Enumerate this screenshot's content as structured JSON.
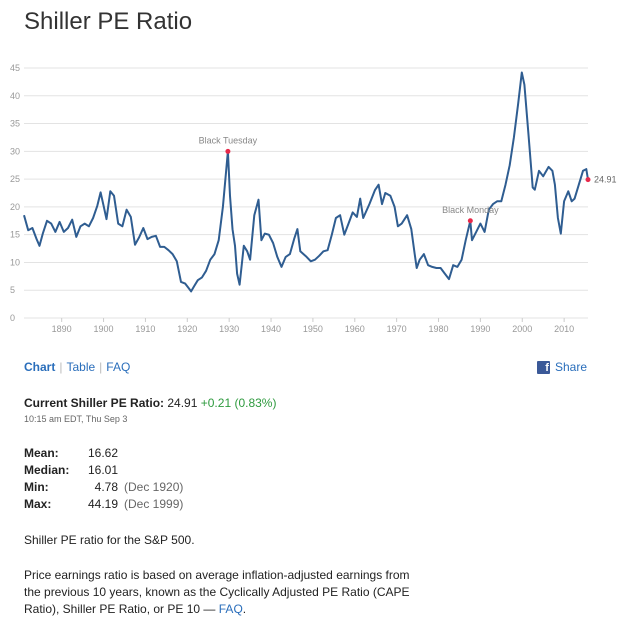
{
  "page": {
    "title": "Shiller PE Ratio"
  },
  "nav": {
    "chart": "Chart",
    "table": "Table",
    "faq": "FAQ",
    "share": "Share"
  },
  "current": {
    "label": "Current Shiller PE Ratio:",
    "value": "24.91",
    "change": "+0.21 (0.83%)",
    "timestamp": "10:15 am EDT, Thu Sep 3"
  },
  "stats": [
    {
      "key": "Mean:",
      "value": "16.62",
      "date": ""
    },
    {
      "key": "Median:",
      "value": "16.01",
      "date": ""
    },
    {
      "key": "Min:",
      "value": "4.78",
      "date": "(Dec 1920)"
    },
    {
      "key": "Max:",
      "value": "44.19",
      "date": "(Dec 1999)"
    }
  ],
  "description": {
    "line1": "Shiller PE ratio for the S&P 500.",
    "line2": "Price earnings ratio is based on average inflation-adjusted earnings from the previous 10 years, known as the Cyclically Adjusted PE Ratio (CAPE Ratio), Shiller PE Ratio, or PE 10 —",
    "faq_link": "FAQ",
    "line2_end": "."
  },
  "colors": {
    "line": "#2f5d91",
    "marker": "#e8294a",
    "grid": "#e3e3e3",
    "link": "#2a6ebb",
    "positive": "#2e9a3e"
  },
  "chart_data": {
    "type": "line",
    "title": "",
    "xlabel": "",
    "ylabel": "",
    "xlim": [
      1881,
      2015.7
    ],
    "ylim": [
      0,
      45
    ],
    "yticks": [
      0,
      5,
      10,
      15,
      20,
      25,
      30,
      35,
      40,
      45
    ],
    "xticks": [
      1890,
      1900,
      1910,
      1920,
      1930,
      1940,
      1950,
      1960,
      1970,
      1980,
      1990,
      2000,
      2010
    ],
    "grid": "horizontal",
    "series": [
      {
        "values": [
          [
            1881,
            18.5
          ],
          [
            1882,
            15.8
          ],
          [
            1883,
            16.2
          ],
          [
            1884,
            14.2
          ],
          [
            1884.7,
            13
          ],
          [
            1885.5,
            15.2
          ],
          [
            1886.5,
            17.5
          ],
          [
            1887.5,
            17
          ],
          [
            1888.5,
            15.5
          ],
          [
            1889.5,
            17.3
          ],
          [
            1890.5,
            15.5
          ],
          [
            1891.5,
            16.2
          ],
          [
            1892.5,
            17.7
          ],
          [
            1893.5,
            14.6
          ],
          [
            1894.5,
            16.5
          ],
          [
            1895.5,
            17
          ],
          [
            1896.5,
            16.5
          ],
          [
            1897.5,
            18
          ],
          [
            1898.5,
            20.2
          ],
          [
            1899.3,
            22.6
          ],
          [
            1900,
            20.2
          ],
          [
            1900.7,
            17.8
          ],
          [
            1901.6,
            22.8
          ],
          [
            1902.5,
            22
          ],
          [
            1903.5,
            17
          ],
          [
            1904.5,
            16.5
          ],
          [
            1905.5,
            19.5
          ],
          [
            1906.5,
            18.2
          ],
          [
            1907.5,
            13.2
          ],
          [
            1908.5,
            14.5
          ],
          [
            1909.5,
            16.2
          ],
          [
            1910.5,
            14.2
          ],
          [
            1911.5,
            14.6
          ],
          [
            1912.5,
            14.8
          ],
          [
            1913.5,
            12.8
          ],
          [
            1914.5,
            12.8
          ],
          [
            1915.5,
            12.2
          ],
          [
            1916.5,
            11.5
          ],
          [
            1917.5,
            10.2
          ],
          [
            1918.5,
            6.5
          ],
          [
            1919.5,
            6.2
          ],
          [
            1920.2,
            5.5
          ],
          [
            1920.9,
            4.78
          ],
          [
            1921.7,
            5.8
          ],
          [
            1922.5,
            6.8
          ],
          [
            1923.5,
            7.3
          ],
          [
            1924.5,
            8.5
          ],
          [
            1925.5,
            10.5
          ],
          [
            1926.5,
            11.5
          ],
          [
            1927.5,
            14
          ],
          [
            1928.5,
            20
          ],
          [
            1929.7,
            30
          ],
          [
            1930.2,
            22
          ],
          [
            1930.8,
            16
          ],
          [
            1931.4,
            13
          ],
          [
            1931.9,
            8
          ],
          [
            1932.5,
            6
          ],
          [
            1933.5,
            13
          ],
          [
            1934.3,
            12
          ],
          [
            1935,
            10.5
          ],
          [
            1936,
            18.5
          ],
          [
            1937,
            21.3
          ],
          [
            1937.7,
            14
          ],
          [
            1938.5,
            15.2
          ],
          [
            1939.5,
            15
          ],
          [
            1940.5,
            13.5
          ],
          [
            1941.5,
            11
          ],
          [
            1942.5,
            9.2
          ],
          [
            1943.5,
            11
          ],
          [
            1944.5,
            11.5
          ],
          [
            1945.5,
            14.2
          ],
          [
            1946.3,
            16
          ],
          [
            1947,
            12
          ],
          [
            1948.5,
            11
          ],
          [
            1949.5,
            10.2
          ],
          [
            1950.5,
            10.5
          ],
          [
            1951.5,
            11.2
          ],
          [
            1952.5,
            12
          ],
          [
            1953.5,
            12.2
          ],
          [
            1954.5,
            15
          ],
          [
            1955.5,
            18
          ],
          [
            1956.5,
            18.5
          ],
          [
            1957.5,
            15
          ],
          [
            1958.5,
            17
          ],
          [
            1959.5,
            19
          ],
          [
            1960.5,
            18.2
          ],
          [
            1961.3,
            21.5
          ],
          [
            1962,
            18
          ],
          [
            1963.5,
            20.5
          ],
          [
            1964.8,
            23
          ],
          [
            1965.7,
            24
          ],
          [
            1966.5,
            20.5
          ],
          [
            1967.3,
            22.5
          ],
          [
            1968.5,
            22
          ],
          [
            1969.5,
            20
          ],
          [
            1970.3,
            16.5
          ],
          [
            1971.2,
            17
          ],
          [
            1972.5,
            18.5
          ],
          [
            1973.5,
            16
          ],
          [
            1974.3,
            11.5
          ],
          [
            1974.8,
            9
          ],
          [
            1975.5,
            10.5
          ],
          [
            1976.5,
            11.5
          ],
          [
            1977.5,
            9.5
          ],
          [
            1978.5,
            9.2
          ],
          [
            1979.5,
            9
          ],
          [
            1980.5,
            9
          ],
          [
            1981.5,
            8
          ],
          [
            1982.5,
            7
          ],
          [
            1983.5,
            9.5
          ],
          [
            1984.5,
            9.2
          ],
          [
            1985.5,
            10.5
          ],
          [
            1986.5,
            14
          ],
          [
            1987.6,
            17.5
          ],
          [
            1988,
            14
          ],
          [
            1989,
            15.5
          ],
          [
            1990,
            17
          ],
          [
            1991,
            15.5
          ],
          [
            1992,
            19.5
          ],
          [
            1993,
            20.5
          ],
          [
            1994,
            21
          ],
          [
            1995,
            21
          ],
          [
            1996,
            24
          ],
          [
            1997,
            27.5
          ],
          [
            1998,
            32.5
          ],
          [
            1999,
            38.5
          ],
          [
            1999.9,
            44.19
          ],
          [
            2000.5,
            42
          ],
          [
            2001.5,
            33
          ],
          [
            2002.5,
            23.5
          ],
          [
            2003,
            23.1
          ],
          [
            2004,
            26.5
          ],
          [
            2005,
            25.5
          ],
          [
            2006.3,
            27.2
          ],
          [
            2007.2,
            26.5
          ],
          [
            2007.8,
            24
          ],
          [
            2008.5,
            18
          ],
          [
            2009.2,
            15.2
          ],
          [
            2010,
            21
          ],
          [
            2011,
            22.8
          ],
          [
            2011.8,
            21
          ],
          [
            2012.5,
            21.5
          ],
          [
            2013.5,
            24
          ],
          [
            2014.5,
            26.5
          ],
          [
            2015.3,
            26.8
          ],
          [
            2015.7,
            24.91
          ]
        ]
      }
    ],
    "annotations": [
      {
        "label": "Black Tuesday",
        "x": 1929.7,
        "y": 30.0
      },
      {
        "label": "Black Monday",
        "x": 1987.6,
        "y": 17.5
      }
    ],
    "current_label": "24.91"
  }
}
